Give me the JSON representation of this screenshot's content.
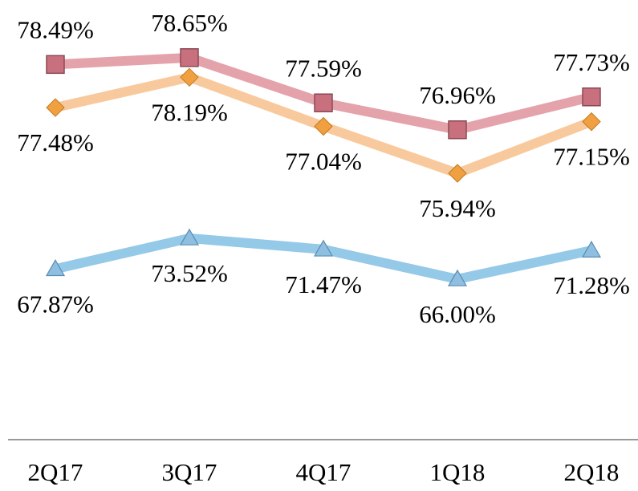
{
  "chart_data": {
    "type": "line",
    "categories": [
      "2Q17",
      "3Q17",
      "4Q17",
      "1Q18",
      "2Q18"
    ],
    "ylim": [
      69.7,
      80
    ],
    "y2lim": [
      36.5,
      117.3
    ],
    "series": [
      {
        "color": "#e4a2ab",
        "marker": "square",
        "marker_color": "#c9707f",
        "label_position": "above",
        "values": [
          78.49,
          78.65,
          77.59,
          76.96,
          77.73
        ],
        "value_labels": [
          "78.49%",
          "78.65%",
          "77.59%",
          "76.96%",
          "77.73%"
        ]
      },
      {
        "color": "#f8c99c",
        "marker": "diamond",
        "marker_color": "#f0a040",
        "label_position": "below",
        "values": [
          77.48,
          78.19,
          77.04,
          75.94,
          77.15
        ],
        "value_labels": [
          "77.48%",
          "78.19%",
          "77.04%",
          "75.94%",
          "77.15%"
        ]
      },
      {
        "color": "#95c9e8",
        "marker": "triangle",
        "marker_color": "#8fbfe0",
        "label_position": "below",
        "axis": "y2",
        "values": [
          67.87,
          73.52,
          71.47,
          66.0,
          71.28
        ],
        "value_labels": [
          "67.87%",
          "73.52%",
          "71.47%",
          "66.00%",
          "71.28%"
        ]
      }
    ]
  }
}
